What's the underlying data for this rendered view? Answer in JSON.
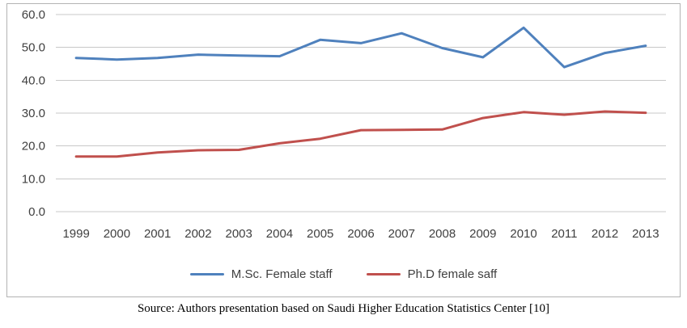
{
  "chart_data": {
    "type": "line",
    "categories": [
      "1999",
      "2000",
      "2001",
      "2002",
      "2003",
      "2004",
      "2005",
      "2006",
      "2007",
      "2008",
      "2009",
      "2010",
      "2011",
      "2012",
      "2013"
    ],
    "series": [
      {
        "name": "M.Sc. Female staff",
        "color": "#4F81BD",
        "values": [
          46.8,
          46.3,
          46.8,
          47.8,
          47.5,
          47.3,
          52.3,
          51.3,
          54.3,
          49.8,
          47.0,
          56.0,
          44.0,
          48.3,
          50.5
        ]
      },
      {
        "name": "Ph.D female saff",
        "color": "#C0504D",
        "values": [
          16.8,
          16.8,
          18.0,
          18.7,
          18.8,
          20.8,
          22.2,
          24.8,
          24.9,
          25.0,
          28.5,
          30.3,
          29.5,
          30.5,
          30.1
        ]
      }
    ],
    "title": "",
    "xlabel": "",
    "ylabel": "",
    "ylim": [
      0,
      60
    ],
    "ytick_step": 10,
    "ytick_decimals": 1,
    "grid": true,
    "legend_position": "bottom"
  },
  "caption": "Source: Authors presentation based on Saudi Higher Education Statistics Center [10]"
}
